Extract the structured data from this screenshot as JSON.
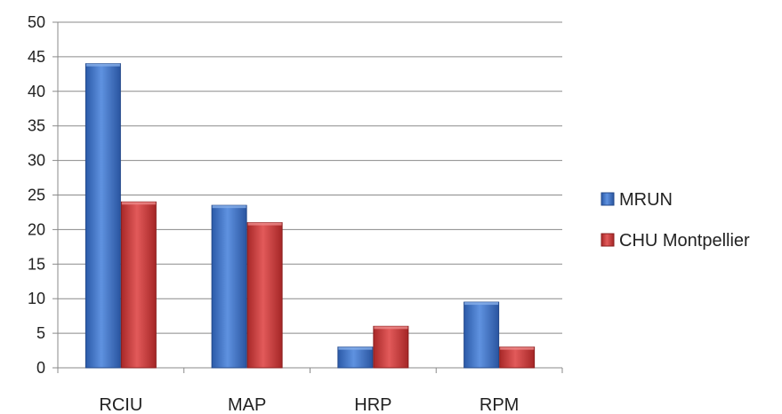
{
  "chart_data": {
    "type": "bar",
    "title": "",
    "xlabel": "",
    "ylabel": "",
    "categories": [
      "RCIU",
      "MAP",
      "HRP",
      "RPM"
    ],
    "series": [
      {
        "name": "MRUN",
        "values": [
          44,
          23.5,
          3,
          9.5
        ],
        "color": "#3d70c4"
      },
      {
        "name": "CHU Montpellier",
        "values": [
          24,
          21,
          6,
          3
        ],
        "color": "#cc3a3a"
      }
    ],
    "ylim": [
      0,
      50
    ],
    "yticks": [
      0,
      5,
      10,
      15,
      20,
      25,
      30,
      35,
      40,
      45,
      50
    ],
    "grid": true,
    "legend_position": "right"
  }
}
